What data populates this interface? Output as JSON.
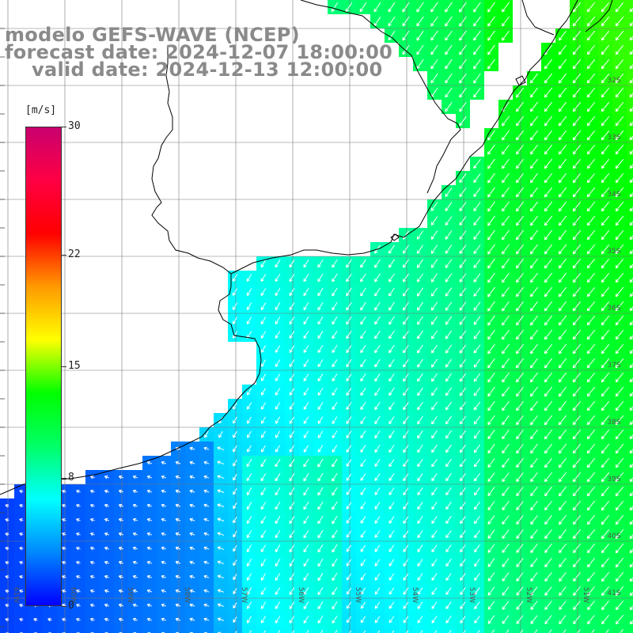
{
  "header": {
    "line1": "modelo GEFS-WAVE (NCEP)",
    "line2": "forecast date: 2024-12-07 18:00:00",
    "line3": "valid date: 2024-12-13 12:00:00"
  },
  "colorbar": {
    "unit": "[m/s]",
    "ticks": [
      {
        "label": "30",
        "value": 30
      },
      {
        "label": "22",
        "value": 22
      },
      {
        "label": "15",
        "value": 15
      },
      {
        "label": "8",
        "value": 8
      },
      {
        "label": "0",
        "value": 0
      }
    ],
    "min": 0,
    "max": 30,
    "colors": [
      "#0000ff",
      "#0088ff",
      "#00ffff",
      "#00ff66",
      "#00ff00",
      "#ffff00",
      "#ff9900",
      "#ff0000",
      "#ff0044",
      "#c8006e"
    ]
  },
  "map": {
    "land_color": "#ffffff",
    "coast_color": "#000000",
    "arrow_color": "#ffffff",
    "lat_labels": [
      "32S",
      "33S",
      "34S",
      "35S",
      "36S",
      "37S",
      "38S",
      "39S",
      "40S",
      "41S"
    ],
    "lon_labels": [
      "61W",
      "60W",
      "59W",
      "58W",
      "57W",
      "56W",
      "55W",
      "54W",
      "53W",
      "52W",
      "51W"
    ]
  }
}
